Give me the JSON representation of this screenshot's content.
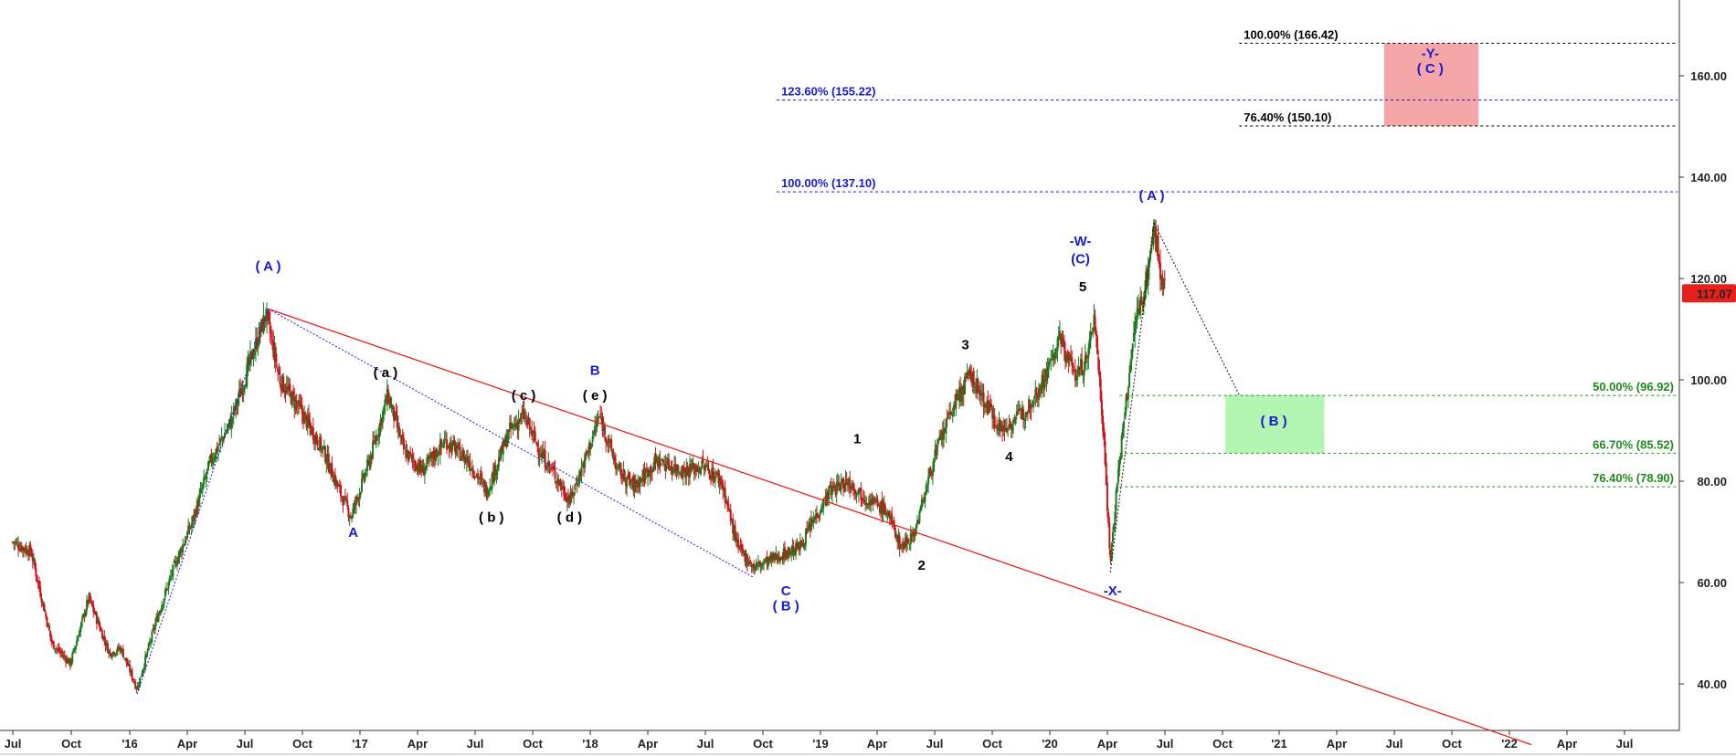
{
  "chart_data": {
    "type": "candlestick",
    "price_axis": {
      "range": [
        30,
        172
      ],
      "ticks": [
        "40.00",
        "60.00",
        "80.00",
        "100.00",
        "120.00",
        "140.00",
        "160.00"
      ]
    },
    "time_axis": {
      "ticks": [
        "Jul",
        "Oct",
        "'16",
        "Apr",
        "Jul",
        "Oct",
        "'17",
        "Apr",
        "Jul",
        "Oct",
        "'18",
        "Apr",
        "Jul",
        "Oct",
        "'19",
        "Apr",
        "Jul",
        "Oct",
        "'20",
        "Apr",
        "Jul",
        "Oct",
        "'21",
        "Apr",
        "Jul",
        "Oct",
        "'22",
        "Apr",
        "Jul"
      ]
    },
    "last_price": {
      "label": "117.07",
      "value": 117.07,
      "color": "#e8201c"
    },
    "price_path": [
      [
        2015.5,
        68
      ],
      [
        2015.58,
        66
      ],
      [
        2015.67,
        48
      ],
      [
        2015.75,
        44
      ],
      [
        2015.83,
        57
      ],
      [
        2015.92,
        46
      ],
      [
        2015.97,
        47
      ],
      [
        2016.04,
        39
      ],
      [
        2016.12,
        52
      ],
      [
        2016.2,
        63
      ],
      [
        2016.28,
        72
      ],
      [
        2016.36,
        84
      ],
      [
        2016.45,
        92
      ],
      [
        2016.52,
        102
      ],
      [
        2016.6,
        113
      ],
      [
        2016.66,
        100
      ],
      [
        2016.75,
        94
      ],
      [
        2016.85,
        86
      ],
      [
        2016.92,
        78
      ],
      [
        2016.97,
        73
      ],
      [
        2017.05,
        84
      ],
      [
        2017.13,
        97
      ],
      [
        2017.2,
        86
      ],
      [
        2017.28,
        82
      ],
      [
        2017.38,
        88
      ],
      [
        2017.48,
        84
      ],
      [
        2017.56,
        78
      ],
      [
        2017.66,
        90
      ],
      [
        2017.72,
        93
      ],
      [
        2017.8,
        85
      ],
      [
        2017.86,
        81
      ],
      [
        2017.92,
        76
      ],
      [
        2018.0,
        86
      ],
      [
        2018.05,
        93
      ],
      [
        2018.13,
        82
      ],
      [
        2018.2,
        79
      ],
      [
        2018.3,
        84
      ],
      [
        2018.42,
        82
      ],
      [
        2018.5,
        83
      ],
      [
        2018.58,
        80
      ],
      [
        2018.65,
        67
      ],
      [
        2018.72,
        63
      ],
      [
        2018.82,
        65
      ],
      [
        2018.92,
        67
      ],
      [
        2019.0,
        74
      ],
      [
        2019.05,
        78
      ],
      [
        2019.13,
        80
      ],
      [
        2019.2,
        77
      ],
      [
        2019.3,
        74
      ],
      [
        2019.36,
        67
      ],
      [
        2019.42,
        70
      ],
      [
        2019.5,
        84
      ],
      [
        2019.58,
        94
      ],
      [
        2019.66,
        101
      ],
      [
        2019.72,
        96
      ],
      [
        2019.8,
        90
      ],
      [
        2019.9,
        94
      ],
      [
        2019.98,
        100
      ],
      [
        2020.05,
        108
      ],
      [
        2020.12,
        101
      ],
      [
        2020.17,
        104
      ],
      [
        2020.2,
        113
      ],
      [
        2020.24,
        90
      ],
      [
        2020.27,
        64
      ],
      [
        2020.3,
        80
      ],
      [
        2020.34,
        96
      ],
      [
        2020.38,
        112
      ],
      [
        2020.42,
        118
      ],
      [
        2020.46,
        130
      ],
      [
        2020.49,
        121
      ],
      [
        2020.51,
        117
      ]
    ],
    "overlays": {
      "red_trendline": {
        "from": [
          2016.61,
          114
        ],
        "to": [
          2022.1,
          28
        ],
        "color": "#e8201c"
      },
      "blue_dotted_lines": [
        {
          "from": [
            2016.04,
            38
          ],
          "to": [
            2016.61,
            114
          ]
        },
        {
          "from": [
            2016.61,
            114
          ],
          "to": [
            2018.72,
            61
          ]
        }
      ],
      "black_dotted_lines": [
        {
          "from": [
            2020.27,
            62
          ],
          "to": [
            2020.46,
            131
          ]
        },
        {
          "from": [
            2020.46,
            131
          ],
          "to": [
            2020.83,
            97
          ]
        }
      ]
    },
    "fib_levels": [
      {
        "label": "100.00% (166.42)",
        "value": 166.42,
        "color": "#000000",
        "start": 2020.83,
        "label_pos": "left"
      },
      {
        "label": "123.60% (155.22)",
        "value": 155.22,
        "color": "#1a1ad0",
        "start": 2018.82,
        "label_pos": "left"
      },
      {
        "label": "76.40% (150.10)",
        "value": 150.1,
        "color": "#000000",
        "start": 2020.83,
        "label_pos": "left"
      },
      {
        "label": "100.00% (137.10)",
        "value": 137.1,
        "color": "#1a1ad0",
        "start": 2018.82,
        "label_pos": "left"
      },
      {
        "label": "50.00% (96.92)",
        "value": 96.92,
        "color": "#1f8a1f",
        "start": 2020.31,
        "label_pos": "right"
      },
      {
        "label": "66.70% (85.52)",
        "value": 85.52,
        "color": "#1f8a1f",
        "start": 2020.31,
        "label_pos": "right"
      },
      {
        "label": "76.40% (78.90)",
        "value": 78.9,
        "color": "#1f8a1f",
        "start": 2020.31,
        "label_pos": "right"
      }
    ],
    "target_zones": [
      {
        "name": "red-target-zone",
        "x0": 2021.46,
        "x1": 2021.87,
        "top": 166.42,
        "bottom": 150.1,
        "fill": "#f4a6a6"
      },
      {
        "name": "green-target-zone",
        "x0": 2020.77,
        "x1": 2021.2,
        "top": 96.92,
        "bottom": 85.52,
        "fill": "#b3f5b3"
      }
    ],
    "wave_labels": [
      {
        "text": "( A )",
        "x": 2016.61,
        "y": 121.5,
        "color": "#1a1ad0"
      },
      {
        "text": "A",
        "x": 2016.98,
        "y": 69,
        "color": "#1a1ad0"
      },
      {
        "text": "( a )",
        "x": 2017.12,
        "y": 100.5,
        "color": "#000000"
      },
      {
        "text": "( b )",
        "x": 2017.58,
        "y": 72,
        "color": "#000000"
      },
      {
        "text": "( c )",
        "x": 2017.72,
        "y": 96,
        "color": "#000000"
      },
      {
        "text": "( d )",
        "x": 2017.92,
        "y": 72,
        "color": "#000000"
      },
      {
        "text": "B",
        "x": 2018.03,
        "y": 101,
        "color": "#1a1ad0"
      },
      {
        "text": "( e )",
        "x": 2018.03,
        "y": 96,
        "color": "#000000"
      },
      {
        "text": "C",
        "x": 2018.86,
        "y": 57.5,
        "color": "#1a1ad0"
      },
      {
        "text": "( B )",
        "x": 2018.86,
        "y": 54.5,
        "color": "#1a1ad0"
      },
      {
        "text": "1",
        "x": 2019.17,
        "y": 87.5,
        "color": "#000000"
      },
      {
        "text": "2",
        "x": 2019.45,
        "y": 62.5,
        "color": "#000000"
      },
      {
        "text": "3",
        "x": 2019.64,
        "y": 106,
        "color": "#000000"
      },
      {
        "text": "4",
        "x": 2019.83,
        "y": 84,
        "color": "#000000"
      },
      {
        "text": "-W-",
        "x": 2020.14,
        "y": 126.5,
        "color": "#1a1ad0"
      },
      {
        "text": "(C)",
        "x": 2020.14,
        "y": 123,
        "color": "#1a1ad0"
      },
      {
        "text": "5",
        "x": 2020.15,
        "y": 117.5,
        "color": "#000000"
      },
      {
        "text": "-X-",
        "x": 2020.28,
        "y": 57.5,
        "color": "#1a1ad0"
      },
      {
        "text": "( A )",
        "x": 2020.45,
        "y": 135.5,
        "color": "#1a1ad0"
      },
      {
        "text": "( B )",
        "x": 2020.98,
        "y": 91,
        "color": "#1a1ad0"
      },
      {
        "text": "-Y-",
        "x": 2021.66,
        "y": 163.5,
        "color": "#1a1ad0"
      },
      {
        "text": "( C )",
        "x": 2021.66,
        "y": 160.5,
        "color": "#1a1ad0"
      }
    ]
  }
}
